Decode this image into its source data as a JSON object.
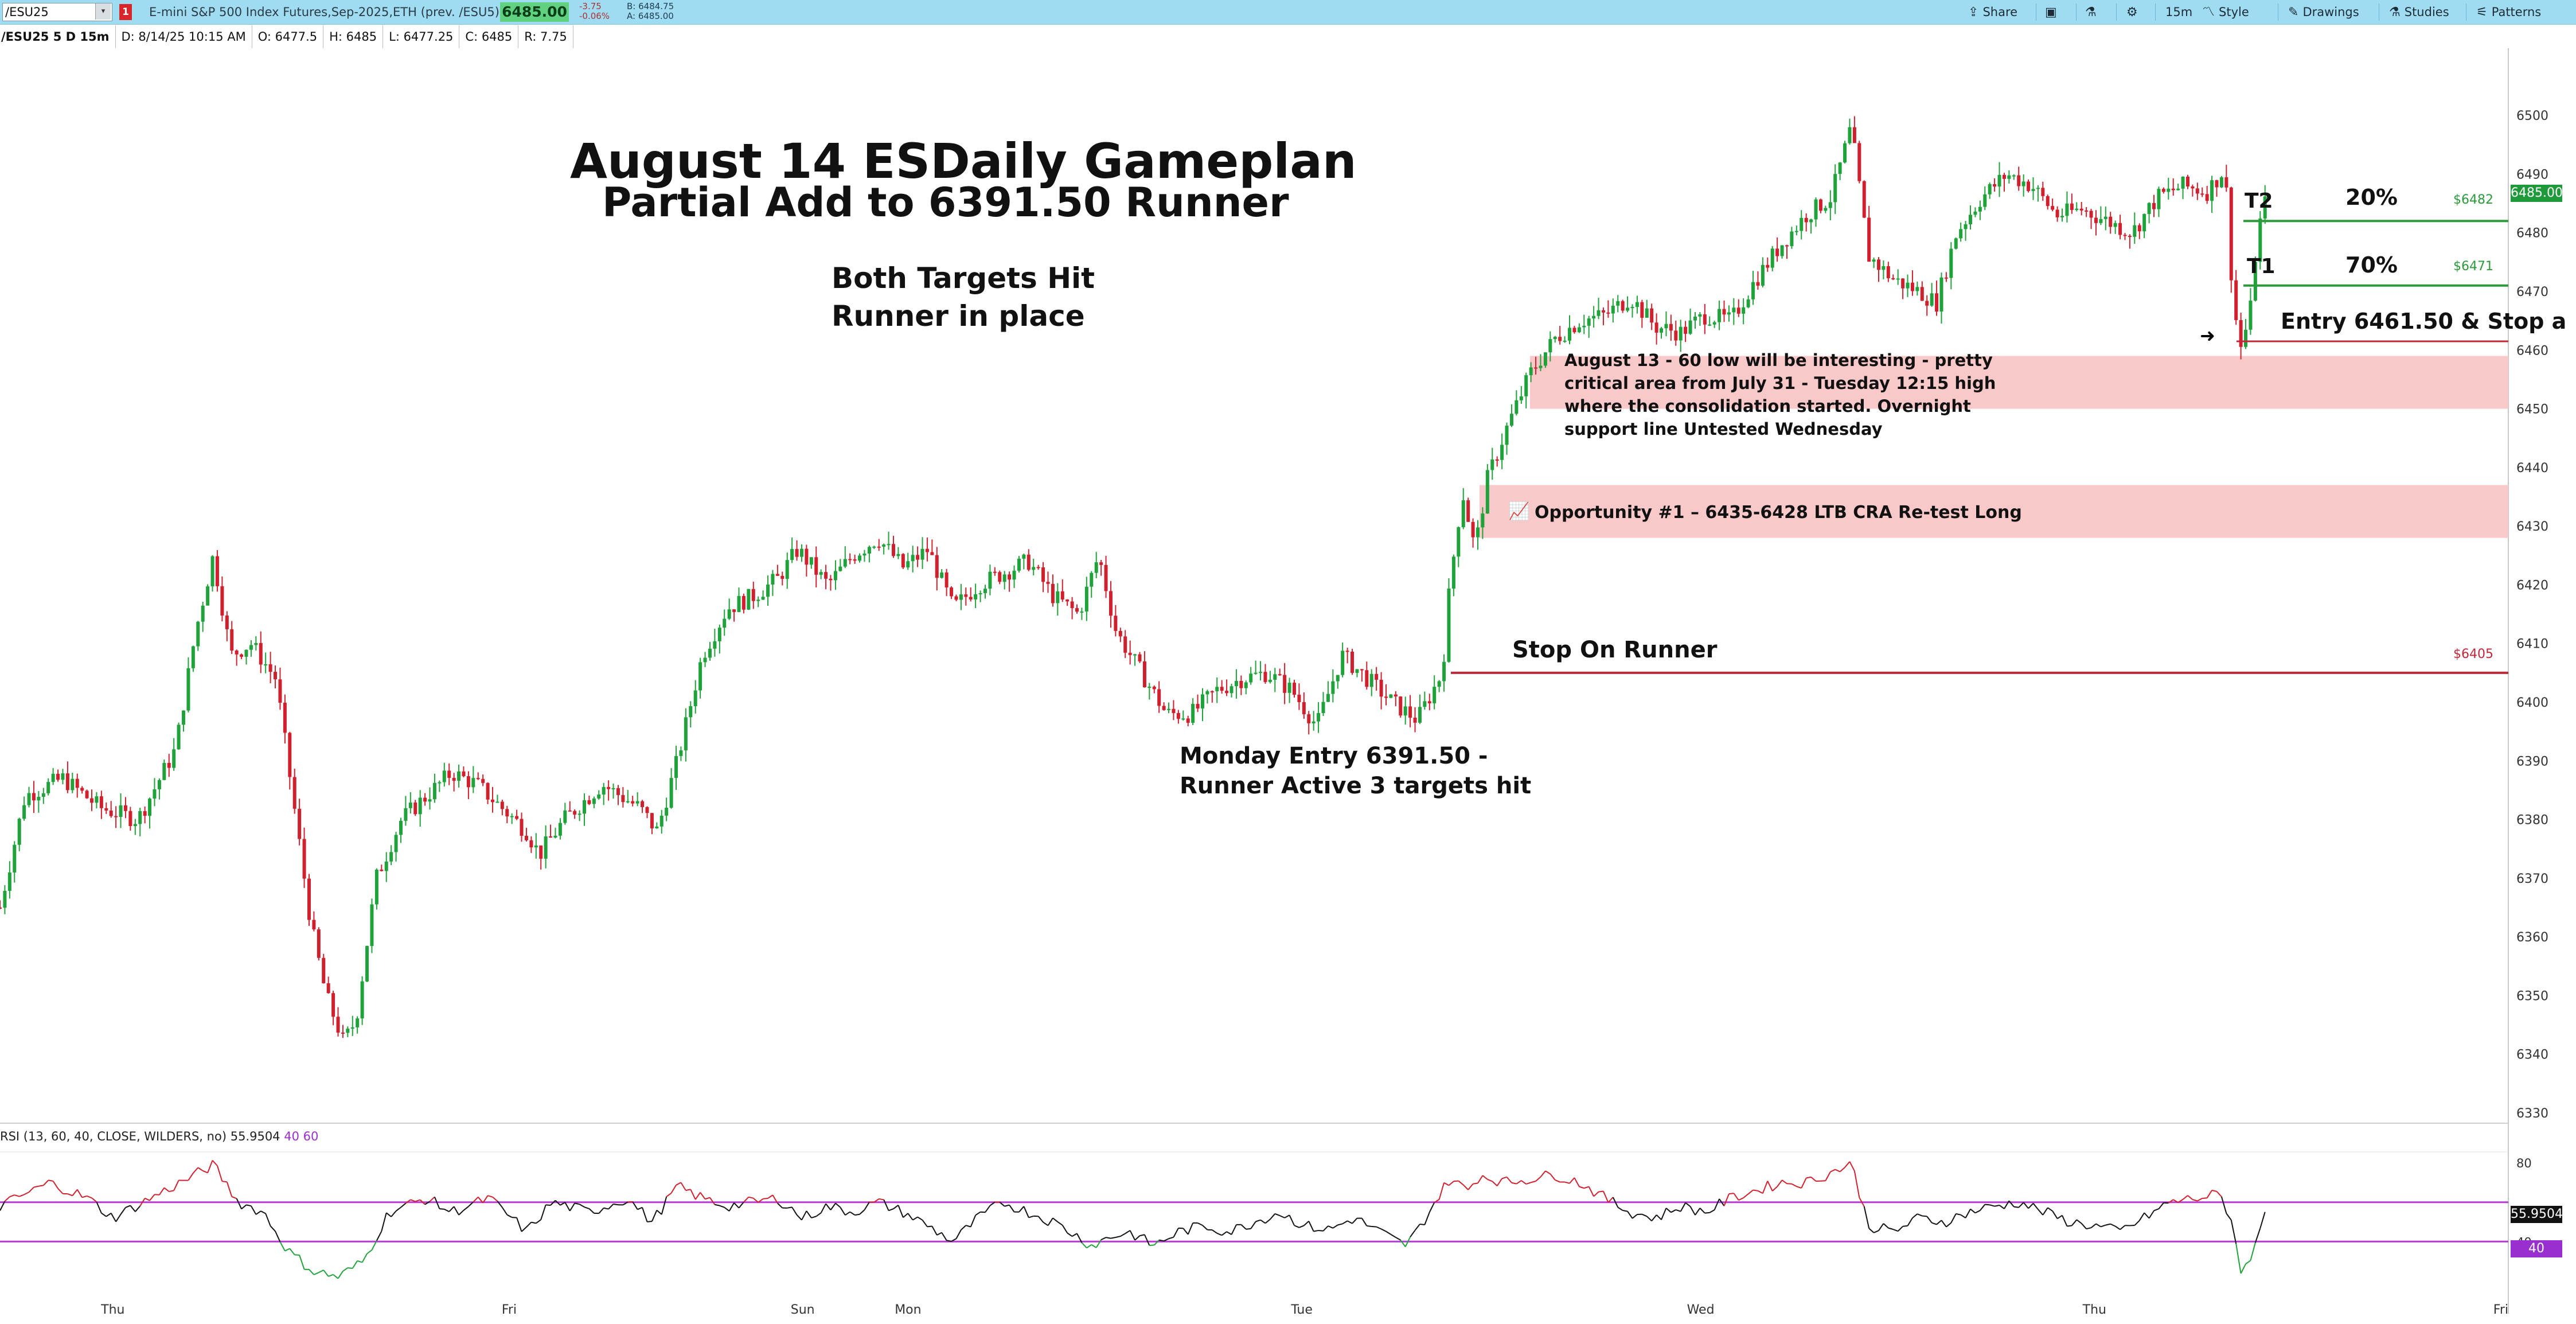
{
  "toolbar": {
    "symbol": "/ESU25",
    "alert_badge": "1",
    "description": "E-mini S&P 500 Index Futures,Sep-2025,ETH (prev. /ESU5)",
    "last_price": "6485.00",
    "net_change": "-3.75",
    "net_change_pct": "-0.06%",
    "bid": "B: 6484.75",
    "ask": "A: 6485.00",
    "share_label": "Share",
    "interval_label": "15m",
    "style_label": "Style",
    "drawings_label": "Drawings",
    "studies_label": "Studies",
    "patterns_label": "Patterns"
  },
  "infobar": {
    "symbol_period": "/ESU25 5 D 15m",
    "date": "D: 8/14/25 10:15 AM",
    "open": "O: 6477.5",
    "high": "H: 6485",
    "low": "L: 6477.25",
    "close": "C: 6485",
    "range": "R: 7.75"
  },
  "annotations": {
    "title": "August 14 ESDaily Gameplan",
    "subtitle": "Partial Add to 6391.50 Runner",
    "targets_line1": "Both Targets Hit",
    "targets_line2": "Runner in place",
    "monday_line1": "Monday Entry 6391.50 -",
    "monday_line2": "Runner Active 3 targets hit",
    "stop": "Stop On Runner",
    "aug13_note": "August 13 - 60 low will be interesting - pretty critical area from July 31 - Tuesday 12:15 high where the consolidation started. Overnight support line Untested Wednesday",
    "opportunity": "Opportunity #1 – 6435-6428 LTB CRA Re-test Long",
    "entry": "Entry 6461.50 & Stop a",
    "t2": "T2",
    "t1": "T1",
    "t2_pct": "20%",
    "t1_pct": "70%",
    "tag_t2": "$6482",
    "tag_t1": "$6471",
    "tag_stop": "$6405"
  },
  "colors": {
    "toolbar_bg": "#9fdcf2",
    "up_candle": "#1fa23a",
    "down_candle": "#d0202e",
    "zone_fill": "#f9c9c9",
    "target_line": "#2a9a3a",
    "stop_line": "#c0283a",
    "rsi_level": "#b53ad6"
  },
  "chart_data": [
    {
      "type": "candlestick",
      "symbol": "/ESU25",
      "interval": "15m",
      "ylim": [
        6330,
        6505
      ],
      "y_ticks": [
        6500,
        6490,
        6480,
        6470,
        6460,
        6450,
        6440,
        6430,
        6420,
        6410,
        6400,
        6390,
        6380,
        6370,
        6360,
        6350,
        6340,
        6330
      ],
      "x_ticks": [
        "Thu",
        "Fri",
        "Sun",
        "Mon",
        "Tue",
        "Wed",
        "Thu",
        "Fri"
      ],
      "last_price": 6485,
      "close_path": [
        [
          0,
          6365
        ],
        [
          0.01,
          6384
        ],
        [
          0.025,
          6387
        ],
        [
          0.04,
          6382
        ],
        [
          0.055,
          6380
        ],
        [
          0.07,
          6392
        ],
        [
          0.078,
          6412
        ],
        [
          0.085,
          6425
        ],
        [
          0.092,
          6408
        ],
        [
          0.1,
          6410
        ],
        [
          0.11,
          6404
        ],
        [
          0.118,
          6380
        ],
        [
          0.124,
          6362
        ],
        [
          0.13,
          6350
        ],
        [
          0.137,
          6342
        ],
        [
          0.142,
          6346
        ],
        [
          0.15,
          6370
        ],
        [
          0.16,
          6380
        ],
        [
          0.17,
          6384
        ],
        [
          0.18,
          6388
        ],
        [
          0.19,
          6386
        ],
        [
          0.2,
          6382
        ],
        [
          0.21,
          6378
        ],
        [
          0.215,
          6374
        ],
        [
          0.225,
          6380
        ],
        [
          0.24,
          6386
        ],
        [
          0.255,
          6382
        ],
        [
          0.262,
          6378
        ],
        [
          0.27,
          6390
        ],
        [
          0.28,
          6408
        ],
        [
          0.29,
          6416
        ],
        [
          0.3,
          6418
        ],
        [
          0.31,
          6421
        ],
        [
          0.318,
          6426
        ],
        [
          0.33,
          6420
        ],
        [
          0.34,
          6425
        ],
        [
          0.35,
          6428
        ],
        [
          0.36,
          6423
        ],
        [
          0.37,
          6426
        ],
        [
          0.38,
          6416
        ],
        [
          0.39,
          6420
        ],
        [
          0.4,
          6422
        ],
        [
          0.41,
          6424
        ],
        [
          0.42,
          6418
        ],
        [
          0.43,
          6415
        ],
        [
          0.438,
          6425
        ],
        [
          0.445,
          6412
        ],
        [
          0.455,
          6405
        ],
        [
          0.465,
          6398
        ],
        [
          0.475,
          6398
        ],
        [
          0.485,
          6402
        ],
        [
          0.495,
          6404
        ],
        [
          0.505,
          6405
        ],
        [
          0.515,
          6402
        ],
        [
          0.525,
          6396
        ],
        [
          0.535,
          6408
        ],
        [
          0.545,
          6404
        ],
        [
          0.555,
          6400
        ],
        [
          0.565,
          6397
        ],
        [
          0.575,
          6405
        ],
        [
          0.578,
          6420
        ],
        [
          0.583,
          6436
        ],
        [
          0.588,
          6426
        ],
        [
          0.593,
          6438
        ],
        [
          0.6,
          6446
        ],
        [
          0.61,
          6456
        ],
        [
          0.62,
          6462
        ],
        [
          0.63,
          6465
        ],
        [
          0.64,
          6466
        ],
        [
          0.65,
          6469
        ],
        [
          0.66,
          6464
        ],
        [
          0.67,
          6463
        ],
        [
          0.68,
          6466
        ],
        [
          0.69,
          6465
        ],
        [
          0.7,
          6472
        ],
        [
          0.71,
          6478
        ],
        [
          0.72,
          6483
        ],
        [
          0.73,
          6486
        ],
        [
          0.738,
          6498
        ],
        [
          0.745,
          6476
        ],
        [
          0.755,
          6472
        ],
        [
          0.765,
          6470
        ],
        [
          0.772,
          6468
        ],
        [
          0.78,
          6480
        ],
        [
          0.79,
          6486
        ],
        [
          0.8,
          6490
        ],
        [
          0.81,
          6488
        ],
        [
          0.82,
          6483
        ],
        [
          0.83,
          6484
        ],
        [
          0.84,
          6482
        ],
        [
          0.85,
          6480
        ],
        [
          0.86,
          6486
        ],
        [
          0.87,
          6488
        ],
        [
          0.88,
          6487
        ],
        [
          0.887,
          6491
        ],
        [
          0.89,
          6470
        ],
        [
          0.893,
          6460
        ],
        [
          0.897,
          6466
        ],
        [
          0.9,
          6480
        ],
        [
          0.903,
          6485
        ]
      ]
    },
    {
      "type": "line",
      "name": "RSI (13, 60, 40, CLOSE, WILDERS, no)",
      "value": "55.9504",
      "levels": [
        "40",
        "60"
      ],
      "ylim": [
        15,
        85
      ],
      "y_ticks": [
        80,
        40
      ],
      "values_path": [
        [
          0,
          58
        ],
        [
          0.02,
          70
        ],
        [
          0.035,
          62
        ],
        [
          0.045,
          52
        ],
        [
          0.06,
          62
        ],
        [
          0.075,
          72
        ],
        [
          0.085,
          79
        ],
        [
          0.095,
          60
        ],
        [
          0.105,
          55
        ],
        [
          0.115,
          35
        ],
        [
          0.125,
          25
        ],
        [
          0.135,
          22
        ],
        [
          0.145,
          30
        ],
        [
          0.155,
          55
        ],
        [
          0.17,
          62
        ],
        [
          0.18,
          55
        ],
        [
          0.195,
          62
        ],
        [
          0.21,
          45
        ],
        [
          0.22,
          60
        ],
        [
          0.235,
          55
        ],
        [
          0.25,
          62
        ],
        [
          0.26,
          50
        ],
        [
          0.27,
          68
        ],
        [
          0.28,
          62
        ],
        [
          0.29,
          58
        ],
        [
          0.3,
          60
        ],
        [
          0.31,
          62
        ],
        [
          0.32,
          52
        ],
        [
          0.33,
          58
        ],
        [
          0.34,
          55
        ],
        [
          0.35,
          60
        ],
        [
          0.36,
          55
        ],
        [
          0.37,
          48
        ],
        [
          0.38,
          40
        ],
        [
          0.39,
          52
        ],
        [
          0.4,
          60
        ],
        [
          0.41,
          55
        ],
        [
          0.42,
          50
        ],
        [
          0.428,
          44
        ],
        [
          0.435,
          38
        ],
        [
          0.442,
          42
        ],
        [
          0.45,
          45
        ],
        [
          0.46,
          38
        ],
        [
          0.47,
          45
        ],
        [
          0.48,
          48
        ],
        [
          0.49,
          45
        ],
        [
          0.5,
          50
        ],
        [
          0.51,
          55
        ],
        [
          0.52,
          48
        ],
        [
          0.53,
          46
        ],
        [
          0.54,
          52
        ],
        [
          0.55,
          45
        ],
        [
          0.56,
          38
        ],
        [
          0.565,
          45
        ],
        [
          0.572,
          60
        ],
        [
          0.578,
          72
        ],
        [
          0.585,
          66
        ],
        [
          0.59,
          74
        ],
        [
          0.6,
          70
        ],
        [
          0.61,
          72
        ],
        [
          0.62,
          74
        ],
        [
          0.63,
          70
        ],
        [
          0.64,
          62
        ],
        [
          0.65,
          55
        ],
        [
          0.66,
          52
        ],
        [
          0.67,
          58
        ],
        [
          0.68,
          55
        ],
        [
          0.69,
          62
        ],
        [
          0.7,
          66
        ],
        [
          0.71,
          70
        ],
        [
          0.72,
          70
        ],
        [
          0.73,
          75
        ],
        [
          0.738,
          80
        ],
        [
          0.745,
          48
        ],
        [
          0.755,
          45
        ],
        [
          0.765,
          52
        ],
        [
          0.775,
          50
        ],
        [
          0.785,
          55
        ],
        [
          0.795,
          58
        ],
        [
          0.805,
          60
        ],
        [
          0.815,
          55
        ],
        [
          0.825,
          50
        ],
        [
          0.835,
          48
        ],
        [
          0.845,
          45
        ],
        [
          0.855,
          52
        ],
        [
          0.865,
          60
        ],
        [
          0.875,
          62
        ],
        [
          0.885,
          64
        ],
        [
          0.89,
          50
        ],
        [
          0.893,
          26
        ],
        [
          0.897,
          28
        ],
        [
          0.9,
          45
        ],
        [
          0.903,
          56
        ]
      ]
    }
  ]
}
